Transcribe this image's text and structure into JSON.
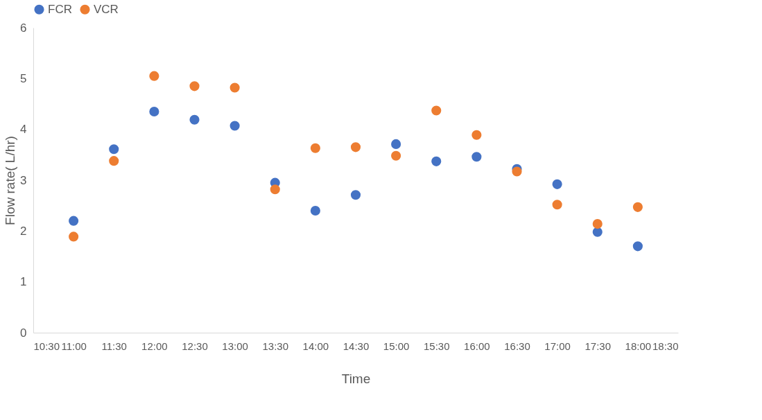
{
  "chart_data": {
    "type": "scatter",
    "xlabel": "Time",
    "ylabel": "Flow rate( L/hr)",
    "x": [
      11,
      11.5,
      12,
      12.5,
      13,
      13.5,
      14,
      14.5,
      15,
      15.5,
      16,
      16.5,
      17,
      17.5,
      18
    ],
    "series": [
      {
        "name": "FCR",
        "color": "#4472c4",
        "values": [
          2.2,
          3.61,
          4.35,
          4.19,
          4.07,
          2.95,
          2.4,
          2.71,
          3.71,
          3.37,
          3.46,
          3.22,
          2.92,
          1.98,
          1.7
        ]
      },
      {
        "name": "VCR",
        "color": "#ed7d31",
        "values": [
          1.89,
          3.38,
          5.05,
          4.85,
          4.82,
          2.82,
          3.63,
          3.65,
          3.48,
          4.37,
          3.89,
          3.17,
          2.52,
          2.14,
          2.47
        ]
      }
    ],
    "xlim": [
      10.5,
      18.5
    ],
    "xticks": [
      {
        "value": 10.5,
        "label": "10:30"
      },
      {
        "value": 11,
        "label": "11:00"
      },
      {
        "value": 11.5,
        "label": "11:30"
      },
      {
        "value": 12,
        "label": "12:00"
      },
      {
        "value": 12.5,
        "label": "12:30"
      },
      {
        "value": 13,
        "label": "13:00"
      },
      {
        "value": 13.5,
        "label": "13:30"
      },
      {
        "value": 14,
        "label": "14:00"
      },
      {
        "value": 14.5,
        "label": "14:30"
      },
      {
        "value": 15,
        "label": "15:00"
      },
      {
        "value": 15.5,
        "label": "15:30"
      },
      {
        "value": 16,
        "label": "16:00"
      },
      {
        "value": 16.5,
        "label": "16:30"
      },
      {
        "value": 17,
        "label": "17:00"
      },
      {
        "value": 17.5,
        "label": "17:30"
      },
      {
        "value": 18,
        "label": "18:00"
      },
      {
        "value": 18.5,
        "label": "18:30"
      }
    ],
    "ylim": [
      0,
      6
    ],
    "yticks": [
      0,
      1,
      2,
      3,
      4,
      5,
      6
    ],
    "grid": false,
    "legend": "top",
    "marker": "circle"
  }
}
